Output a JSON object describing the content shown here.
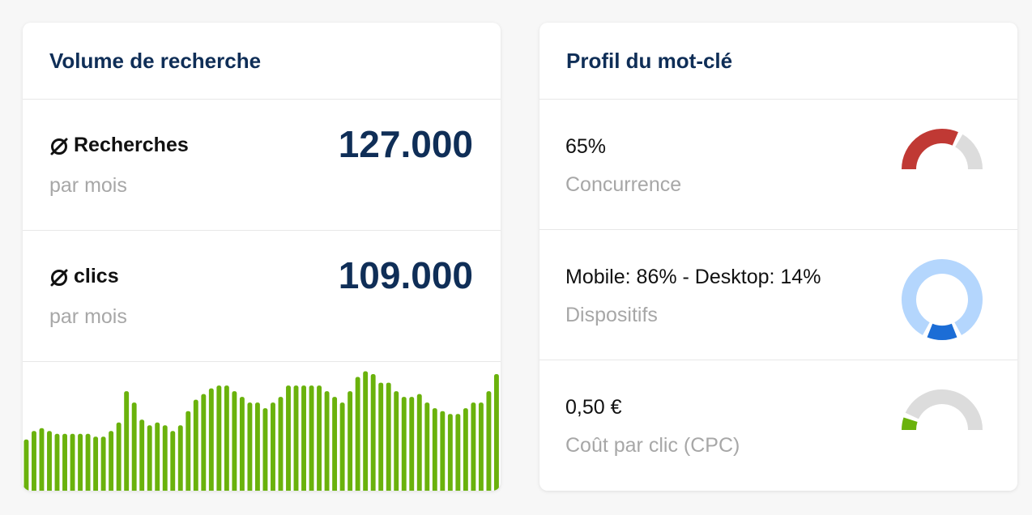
{
  "volume": {
    "title": "Volume de recherche",
    "searches": {
      "label": "Recherches",
      "sub": "par mois",
      "value": "127.000"
    },
    "clicks": {
      "label": "clics",
      "sub": "par mois",
      "value": "109.000"
    },
    "trend": [
      18,
      21,
      22,
      21,
      20,
      20,
      20,
      20,
      20,
      19,
      19,
      21,
      24,
      35,
      31,
      25,
      23,
      24,
      23,
      21,
      23,
      28,
      32,
      34,
      36,
      37,
      37,
      35,
      33,
      31,
      31,
      29,
      31,
      33,
      37,
      37,
      37,
      37,
      37,
      35,
      33,
      31,
      35,
      40,
      42,
      41,
      38,
      38,
      35,
      33,
      33,
      34,
      31,
      29,
      28,
      27,
      27,
      29,
      31,
      31,
      35,
      41
    ],
    "bar_color": "#6ab20c"
  },
  "profile": {
    "title": "Profil du mot-clé",
    "competition": {
      "value": "65%",
      "label": "Concurrence",
      "fraction": 0.65,
      "color": "#c03934",
      "track": "#dcdcdc"
    },
    "devices": {
      "value": "Mobile: 86% - Desktop: 14%",
      "label": "Dispositifs",
      "mobile": 0.86,
      "desktop": 0.14,
      "mobile_color": "#b4d6fd",
      "desktop_color": "#1c6dd6"
    },
    "cpc": {
      "value": "0,50 €",
      "label": "Coût par clic (CPC)",
      "fraction": 0.12,
      "color": "#6ab20c",
      "track": "#dcdcdc"
    }
  }
}
